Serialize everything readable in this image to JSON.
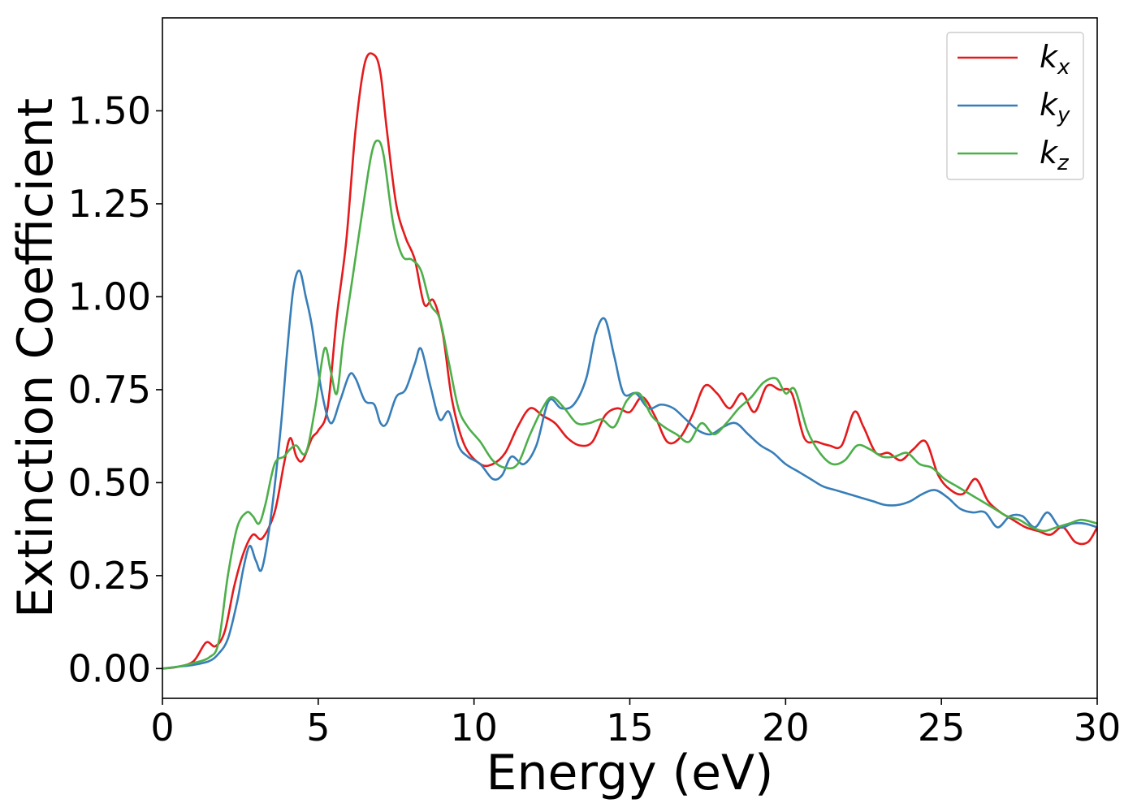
{
  "chart_data": {
    "type": "line",
    "title": "",
    "xlabel": "Energy (eV)",
    "ylabel": "Extinction Coefficient",
    "xlim": [
      0,
      30
    ],
    "ylim": [
      -0.08,
      1.75
    ],
    "xticks": [
      0,
      5,
      10,
      15,
      20,
      25,
      30
    ],
    "xtick_labels": [
      "0",
      "5",
      "10",
      "15",
      "20",
      "25",
      "30"
    ],
    "yticks": [
      0.0,
      0.25,
      0.5,
      0.75,
      1.0,
      1.25,
      1.5
    ],
    "ytick_labels": [
      "0.00",
      "0.25",
      "0.50",
      "0.75",
      "1.00",
      "1.25",
      "1.50"
    ],
    "grid": false,
    "legend_position": "top-right",
    "series": [
      {
        "name": "kx",
        "legend_base": "k",
        "legend_sub": "x",
        "color": "#e41a1c",
        "x": [
          0,
          0.5,
          1.0,
          1.4,
          1.7,
          2.0,
          2.3,
          2.6,
          2.9,
          3.2,
          3.6,
          3.9,
          4.1,
          4.3,
          4.5,
          4.8,
          5.0,
          5.3,
          5.6,
          5.9,
          6.2,
          6.5,
          6.8,
          7.0,
          7.2,
          7.5,
          7.8,
          8.1,
          8.4,
          8.7,
          9.0,
          9.3,
          9.7,
          10.2,
          10.6,
          11.0,
          11.4,
          11.8,
          12.2,
          12.6,
          13.0,
          13.4,
          13.8,
          14.2,
          14.6,
          15.0,
          15.4,
          15.8,
          16.2,
          16.6,
          17.0,
          17.4,
          17.8,
          18.2,
          18.6,
          19.0,
          19.4,
          19.8,
          20.2,
          20.6,
          21.0,
          21.4,
          21.8,
          22.2,
          22.5,
          22.9,
          23.3,
          23.7,
          24.1,
          24.5,
          24.9,
          25.3,
          25.7,
          26.1,
          26.5,
          26.9,
          27.3,
          27.7,
          28.1,
          28.5,
          28.9,
          29.3,
          29.7,
          30.0
        ],
        "y": [
          0.0,
          0.005,
          0.02,
          0.07,
          0.06,
          0.1,
          0.22,
          0.31,
          0.36,
          0.35,
          0.42,
          0.55,
          0.62,
          0.57,
          0.56,
          0.62,
          0.64,
          0.7,
          0.95,
          1.15,
          1.45,
          1.63,
          1.65,
          1.6,
          1.45,
          1.25,
          1.16,
          1.1,
          0.98,
          0.99,
          0.9,
          0.72,
          0.6,
          0.55,
          0.55,
          0.58,
          0.65,
          0.7,
          0.68,
          0.66,
          0.62,
          0.6,
          0.61,
          0.68,
          0.7,
          0.69,
          0.73,
          0.68,
          0.61,
          0.62,
          0.68,
          0.76,
          0.74,
          0.7,
          0.74,
          0.69,
          0.76,
          0.75,
          0.74,
          0.62,
          0.61,
          0.6,
          0.6,
          0.69,
          0.65,
          0.58,
          0.58,
          0.56,
          0.59,
          0.61,
          0.52,
          0.48,
          0.47,
          0.51,
          0.45,
          0.42,
          0.4,
          0.38,
          0.37,
          0.36,
          0.38,
          0.34,
          0.34,
          0.38
        ]
      },
      {
        "name": "ky",
        "legend_base": "k",
        "legend_sub": "y",
        "color": "#377eb8",
        "x": [
          0,
          0.5,
          1.0,
          1.5,
          1.8,
          2.1,
          2.4,
          2.6,
          2.8,
          3.0,
          3.2,
          3.5,
          3.8,
          4.0,
          4.2,
          4.4,
          4.6,
          4.8,
          5.1,
          5.4,
          5.7,
          6.0,
          6.2,
          6.5,
          6.8,
          7.0,
          7.2,
          7.5,
          7.8,
          8.1,
          8.3,
          8.6,
          8.9,
          9.2,
          9.5,
          9.8,
          10.2,
          10.6,
          10.9,
          11.2,
          11.6,
          12.0,
          12.4,
          12.8,
          13.2,
          13.6,
          13.9,
          14.2,
          14.5,
          14.8,
          15.2,
          15.6,
          16.0,
          16.4,
          16.8,
          17.2,
          17.6,
          18.0,
          18.4,
          18.8,
          19.2,
          19.6,
          20.0,
          20.4,
          20.8,
          21.2,
          21.6,
          22.0,
          22.4,
          22.8,
          23.2,
          23.6,
          24.0,
          24.4,
          24.8,
          25.2,
          25.6,
          26.0,
          26.4,
          26.8,
          27.2,
          27.6,
          28.0,
          28.4,
          28.8,
          29.2,
          29.6,
          30.0
        ],
        "y": [
          0.0,
          0.005,
          0.01,
          0.02,
          0.04,
          0.08,
          0.18,
          0.27,
          0.33,
          0.29,
          0.27,
          0.42,
          0.65,
          0.85,
          1.02,
          1.07,
          1.0,
          0.92,
          0.75,
          0.66,
          0.72,
          0.79,
          0.78,
          0.72,
          0.71,
          0.66,
          0.66,
          0.73,
          0.75,
          0.82,
          0.86,
          0.76,
          0.67,
          0.69,
          0.6,
          0.57,
          0.55,
          0.51,
          0.52,
          0.57,
          0.55,
          0.6,
          0.72,
          0.7,
          0.71,
          0.78,
          0.9,
          0.94,
          0.84,
          0.74,
          0.74,
          0.7,
          0.71,
          0.7,
          0.67,
          0.64,
          0.63,
          0.65,
          0.66,
          0.63,
          0.6,
          0.58,
          0.55,
          0.53,
          0.51,
          0.49,
          0.48,
          0.47,
          0.46,
          0.45,
          0.44,
          0.44,
          0.45,
          0.47,
          0.48,
          0.46,
          0.43,
          0.42,
          0.42,
          0.38,
          0.41,
          0.41,
          0.38,
          0.42,
          0.38,
          0.39,
          0.39,
          0.38
        ]
      },
      {
        "name": "kz",
        "legend_base": "k",
        "legend_sub": "z",
        "color": "#4daf4a",
        "x": [
          0,
          0.5,
          1.0,
          1.5,
          1.8,
          2.1,
          2.4,
          2.7,
          2.9,
          3.1,
          3.3,
          3.6,
          3.9,
          4.1,
          4.3,
          4.6,
          4.9,
          5.2,
          5.4,
          5.6,
          5.8,
          6.1,
          6.4,
          6.7,
          6.9,
          7.1,
          7.4,
          7.7,
          8.0,
          8.3,
          8.6,
          8.9,
          9.2,
          9.5,
          9.8,
          10.2,
          10.6,
          11.0,
          11.4,
          11.8,
          12.2,
          12.5,
          12.9,
          13.3,
          13.7,
          14.1,
          14.5,
          14.9,
          15.3,
          15.7,
          16.1,
          16.5,
          16.9,
          17.3,
          17.7,
          18.1,
          18.5,
          18.9,
          19.3,
          19.7,
          20.0,
          20.3,
          20.7,
          21.1,
          21.5,
          21.9,
          22.3,
          22.7,
          23.1,
          23.5,
          23.9,
          24.3,
          24.7,
          25.1,
          25.5,
          25.9,
          26.3,
          26.7,
          27.1,
          27.5,
          27.9,
          28.3,
          28.7,
          29.1,
          29.5,
          30.0
        ],
        "y": [
          0.0,
          0.005,
          0.015,
          0.03,
          0.07,
          0.25,
          0.38,
          0.42,
          0.41,
          0.39,
          0.44,
          0.55,
          0.57,
          0.59,
          0.6,
          0.58,
          0.7,
          0.86,
          0.8,
          0.74,
          0.88,
          1.05,
          1.22,
          1.38,
          1.42,
          1.38,
          1.2,
          1.11,
          1.1,
          1.07,
          0.98,
          0.94,
          0.82,
          0.7,
          0.65,
          0.61,
          0.56,
          0.54,
          0.55,
          0.63,
          0.7,
          0.73,
          0.7,
          0.66,
          0.66,
          0.67,
          0.65,
          0.72,
          0.74,
          0.68,
          0.65,
          0.63,
          0.61,
          0.66,
          0.63,
          0.66,
          0.7,
          0.73,
          0.77,
          0.78,
          0.74,
          0.75,
          0.64,
          0.58,
          0.55,
          0.56,
          0.6,
          0.59,
          0.57,
          0.57,
          0.58,
          0.55,
          0.54,
          0.51,
          0.49,
          0.47,
          0.45,
          0.43,
          0.41,
          0.4,
          0.38,
          0.37,
          0.38,
          0.39,
          0.4,
          0.39
        ]
      }
    ]
  }
}
